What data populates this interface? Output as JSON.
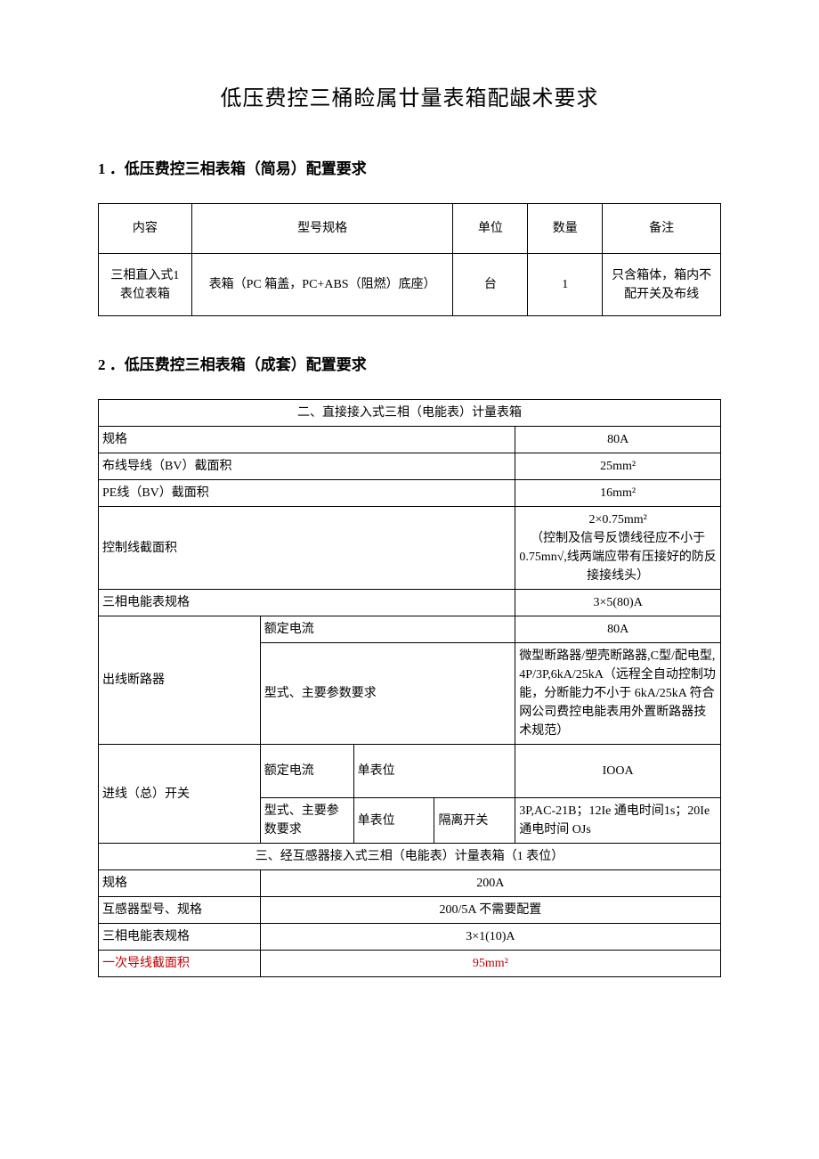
{
  "title": "低压费控三桶睑属廿量表箱配龈术要求",
  "section1": {
    "heading": "1 ．低压费控三相表箱（简易）配置要求",
    "table": {
      "headers": {
        "c1": "内容",
        "c2": "型号规格",
        "c3": "单位",
        "c4": "数量",
        "c5": "备注"
      },
      "row": {
        "c1": "三相直入式1 表位表箱",
        "c2": "表箱（PC 箱盖，PC+ABS（阻燃）底座）",
        "c3": "台",
        "c4": "1",
        "c5": "只含箱体，箱内不配开关及布线"
      },
      "col_widths": {
        "c1": "15%",
        "c2": "42%",
        "c3": "12%",
        "c4": "12%",
        "c5": "19%"
      }
    }
  },
  "section2": {
    "heading": "2 ．低压费控三相表箱（成套）配置要求",
    "table": {
      "header_a": "二、直接接入式三相（电能表）计量表箱",
      "r_spec": {
        "label": "规格",
        "value": "80A"
      },
      "r_bv": {
        "label": "布线导线（BV）截面积",
        "value": "25mm²"
      },
      "r_pe": {
        "label": "PE线（BV）截面积",
        "value": "16mm²"
      },
      "r_ctrl": {
        "label": "控制线截面积",
        "value": "2×0.75mm²\n（控制及信号反馈线径应不小于 0.75mn√,线两端应带有压接好的防反\n接接线头）"
      },
      "r_meter": {
        "label": "三相电能表规格",
        "value": "3×5(80)A"
      },
      "r_out": {
        "label": "出线断路器",
        "r1_label": "额定电流",
        "r1_value": "80A",
        "r2_label": "型式、主要参数要求",
        "r2_value": "微型断路器/塑壳断路器,C型/配电型, 4P/3P,6kA/25kA（远程全自动控制功能，分断能力不小于 6kA/25kA 符合网公司费控电能表用外置断路器技术规范）"
      },
      "r_in": {
        "label": "进线（总）开关",
        "r1_label": "额定电流",
        "r1_sub": "单表位",
        "r1_value": "IOOA",
        "r2_label": "型式、主要参数要求",
        "r2_sub": "单表位",
        "r2_sub2": "隔离开关",
        "r2_value": "3P,AC-21B；12Ie 通电时间1s；20Ie 通电时间 OJs"
      },
      "header_b": "三、经互感器接入式三相（电能表）计量表箱（1 表位）",
      "r_spec2": {
        "label": "规格",
        "value": "200A"
      },
      "r_ct": {
        "label": "互感器型号、规格",
        "value": "200/5A 不需要配置"
      },
      "r_meter2": {
        "label": "三相电能表规格",
        "value": "3×1(10)A"
      },
      "r_primary": {
        "label": "一次导线截面积",
        "value": "95mm²"
      },
      "col_widths": {
        "c1": "26%",
        "c2": "15%",
        "c3": "13%",
        "c4": "13%",
        "c5": "33%"
      }
    }
  },
  "colors": {
    "text": "#000000",
    "border": "#000000",
    "red": "#c00000",
    "bg": "#ffffff"
  },
  "fonts": {
    "title_size": 24,
    "heading_size": 17,
    "body_size": 14
  }
}
